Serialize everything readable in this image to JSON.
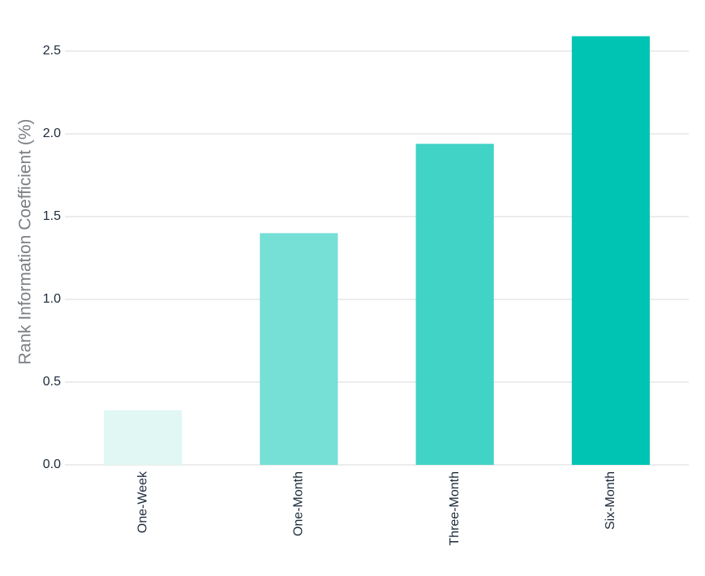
{
  "chart_data": {
    "type": "bar",
    "y_label": "Rank Information Coefficient (%)",
    "categories": [
      "One-Week",
      "One-Month",
      "Three-Month",
      "Six-Month"
    ],
    "values": [
      0.33,
      1.4,
      1.94,
      2.59
    ],
    "colors": [
      "#e0f7f4",
      "#76dfd6",
      "#41d3c5",
      "#00c4b3"
    ],
    "ylim": [
      0,
      2.6
    ],
    "yticks": [
      {
        "value": 0,
        "label": "0.0"
      },
      0.5,
      {
        "value": 1,
        "label": "1.0"
      },
      1.5,
      {
        "value": 2,
        "label": "2.0"
      },
      2.5
    ],
    "grid": true
  }
}
